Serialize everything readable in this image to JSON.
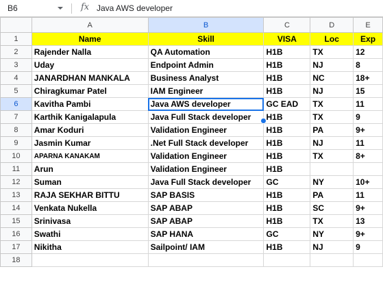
{
  "formula_bar": {
    "cell_ref": "B6",
    "fx_label": "fx",
    "value": "Java AWS developer"
  },
  "columns": [
    "A",
    "B",
    "C",
    "D",
    "E"
  ],
  "rows": [
    {
      "num": "1",
      "cells": [
        "Name",
        "Skill",
        "VISA",
        "Loc",
        "Exp"
      ]
    },
    {
      "num": "2",
      "cells": [
        "Rajender Nalla",
        "QA Automation",
        "H1B",
        "TX",
        "12"
      ]
    },
    {
      "num": "3",
      "cells": [
        "Uday",
        "Endpoint Admin",
        "H1B",
        "NJ",
        "8"
      ]
    },
    {
      "num": "4",
      "cells": [
        "JANARDHAN MANKALA",
        "Business Analyst",
        "H1B",
        "NC",
        "18+"
      ]
    },
    {
      "num": "5",
      "cells": [
        "Chiragkumar Patel",
        "IAM Engineer",
        "H1B",
        "NJ",
        "15"
      ]
    },
    {
      "num": "6",
      "cells": [
        "Kavitha Pambi",
        "Java AWS developer",
        "GC EAD",
        "TX",
        "11"
      ]
    },
    {
      "num": "7",
      "cells": [
        "Karthik Kanigalapula",
        "Java Full Stack developer",
        "H1B",
        "TX",
        "9"
      ]
    },
    {
      "num": "8",
      "cells": [
        "Amar Koduri",
        "Validation Engineer",
        "H1B",
        "PA",
        "9+"
      ]
    },
    {
      "num": "9",
      "cells": [
        "Jasmin Kumar",
        ".Net Full Stack developer",
        "H1B",
        "NJ",
        "11"
      ]
    },
    {
      "num": "10",
      "cells": [
        "APARNA KANAKAM",
        "Validation Engineer",
        "H1B",
        "TX",
        "8+"
      ]
    },
    {
      "num": "11",
      "cells": [
        "Arun",
        "Validation Engineer",
        "H1B",
        "",
        ""
      ]
    },
    {
      "num": "12",
      "cells": [
        "Suman",
        "Java Full Stack developer",
        "GC",
        "NY",
        "10+"
      ]
    },
    {
      "num": "13",
      "cells": [
        "RAJA SEKHAR BITTU",
        "SAP BASIS",
        "H1B",
        "PA",
        "11"
      ]
    },
    {
      "num": "14",
      "cells": [
        "Venkata Nukella",
        "SAP ABAP",
        "H1B",
        "SC",
        "9+"
      ]
    },
    {
      "num": "15",
      "cells": [
        "Srinivasa",
        "SAP ABAP",
        "H1B",
        "TX",
        "13"
      ]
    },
    {
      "num": "16",
      "cells": [
        "Swathi",
        "SAP HANA",
        "GC",
        "NY",
        "9+"
      ]
    },
    {
      "num": "17",
      "cells": [
        "Nikitha",
        "Sailpoint/ IAM",
        "H1B",
        "NJ",
        "9"
      ]
    },
    {
      "num": "18",
      "cells": [
        "",
        "",
        "",
        "",
        ""
      ]
    }
  ],
  "selection": {
    "row": "6",
    "column": "B"
  },
  "colors": {
    "header_fill": "#ffff00",
    "selection_blue": "#1a73e8",
    "header_highlight": "#d3e3fd"
  }
}
